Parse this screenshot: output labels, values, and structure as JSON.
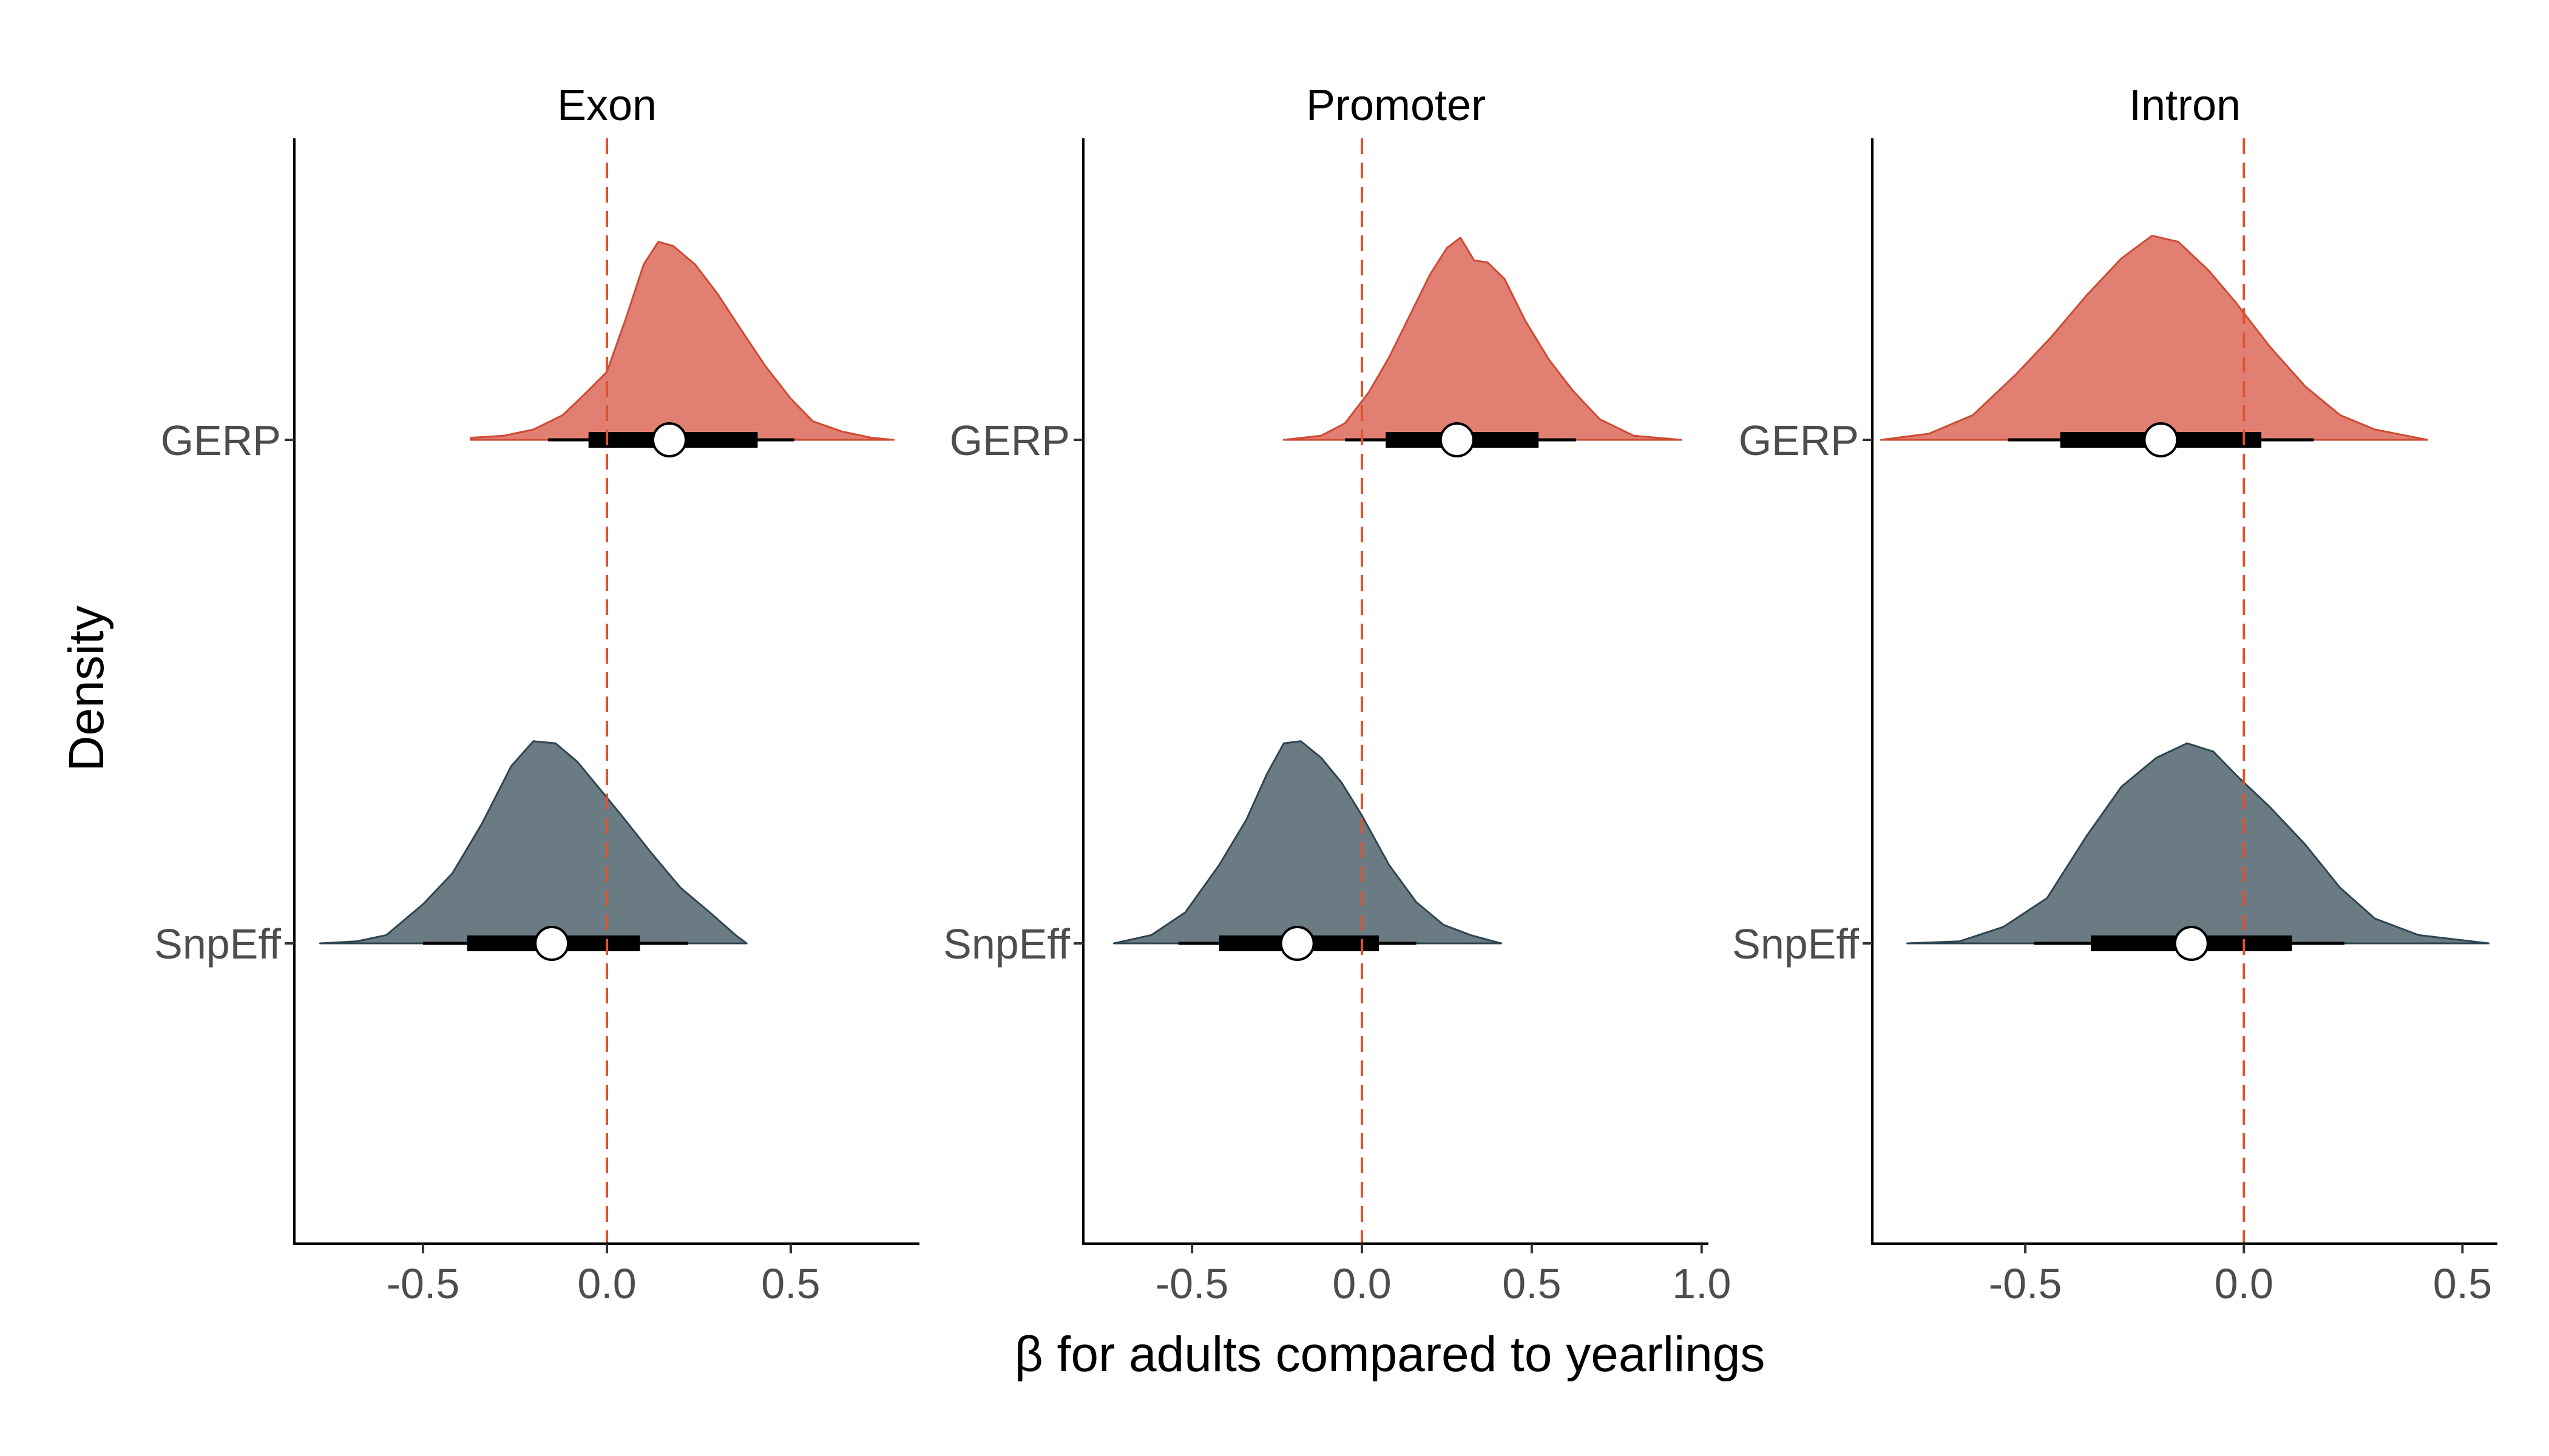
{
  "chart_data": {
    "type": "density",
    "xlabel": "β for adults compared to yearlings",
    "ylabel": "Density",
    "categories": [
      "GERP",
      "SnpEff"
    ],
    "colors": {
      "GERP": "#e07f72",
      "GERP_stroke": "#cf4a33",
      "SnpEff": "#6a7b83",
      "SnpEff_stroke": "#2f4552",
      "refline": "#e0532f"
    },
    "reference_line": 0,
    "grid": false,
    "legend": "none",
    "panels": [
      {
        "title": "Exon",
        "xlim": [
          -0.85,
          0.85
        ],
        "xticks": [
          "-0.5",
          "0.0",
          "0.5"
        ],
        "series": [
          {
            "name": "GERP",
            "mode": 0.15,
            "median": 0.17,
            "interval_66": [
              -0.05,
              0.41
            ],
            "interval_95": [
              -0.16,
              0.51
            ],
            "density": [
              [
                -0.37,
                0.01
              ],
              [
                -0.28,
                0.02
              ],
              [
                -0.2,
                0.05
              ],
              [
                -0.12,
                0.12
              ],
              [
                -0.05,
                0.24
              ],
              [
                0.0,
                0.33
              ],
              [
                0.05,
                0.58
              ],
              [
                0.1,
                0.85
              ],
              [
                0.14,
                0.96
              ],
              [
                0.18,
                0.94
              ],
              [
                0.24,
                0.85
              ],
              [
                0.3,
                0.71
              ],
              [
                0.37,
                0.52
              ],
              [
                0.43,
                0.36
              ],
              [
                0.5,
                0.2
              ],
              [
                0.56,
                0.09
              ],
              [
                0.64,
                0.04
              ],
              [
                0.72,
                0.01
              ],
              [
                0.78,
                0.0
              ]
            ]
          },
          {
            "name": "SnpEff",
            "mode": -0.17,
            "median": -0.15,
            "interval_66": [
              -0.38,
              0.09
            ],
            "interval_95": [
              -0.5,
              0.22
            ],
            "density": [
              [
                -0.78,
                0.0
              ],
              [
                -0.68,
                0.01
              ],
              [
                -0.6,
                0.04
              ],
              [
                -0.5,
                0.19
              ],
              [
                -0.42,
                0.34
              ],
              [
                -0.34,
                0.58
              ],
              [
                -0.26,
                0.86
              ],
              [
                -0.2,
                0.98
              ],
              [
                -0.14,
                0.97
              ],
              [
                -0.08,
                0.88
              ],
              [
                -0.02,
                0.75
              ],
              [
                0.04,
                0.62
              ],
              [
                0.12,
                0.44
              ],
              [
                0.2,
                0.27
              ],
              [
                0.28,
                0.15
              ],
              [
                0.35,
                0.04
              ],
              [
                0.38,
                0.0
              ]
            ]
          }
        ]
      },
      {
        "title": "Promoter",
        "xlim": [
          -0.82,
          1.02
        ],
        "xticks": [
          "-0.5",
          "0.0",
          "0.5",
          "1.0"
        ],
        "series": [
          {
            "name": "GERP",
            "mode": 0.28,
            "median": 0.28,
            "interval_66": [
              0.07,
              0.52
            ],
            "interval_95": [
              -0.05,
              0.63
            ],
            "density": [
              [
                -0.23,
                0.0
              ],
              [
                -0.12,
                0.02
              ],
              [
                -0.05,
                0.08
              ],
              [
                0.02,
                0.23
              ],
              [
                0.08,
                0.4
              ],
              [
                0.14,
                0.6
              ],
              [
                0.2,
                0.8
              ],
              [
                0.25,
                0.93
              ],
              [
                0.29,
                0.98
              ],
              [
                0.33,
                0.87
              ],
              [
                0.37,
                0.86
              ],
              [
                0.42,
                0.78
              ],
              [
                0.48,
                0.58
              ],
              [
                0.55,
                0.39
              ],
              [
                0.62,
                0.24
              ],
              [
                0.7,
                0.1
              ],
              [
                0.8,
                0.02
              ],
              [
                0.94,
                0.0
              ]
            ]
          },
          {
            "name": "SnpEff",
            "mode": -0.2,
            "median": -0.19,
            "interval_66": [
              -0.42,
              0.05
            ],
            "interval_95": [
              -0.54,
              0.16
            ],
            "density": [
              [
                -0.73,
                0.0
              ],
              [
                -0.62,
                0.04
              ],
              [
                -0.52,
                0.15
              ],
              [
                -0.42,
                0.38
              ],
              [
                -0.34,
                0.6
              ],
              [
                -0.28,
                0.82
              ],
              [
                -0.23,
                0.97
              ],
              [
                -0.18,
                0.98
              ],
              [
                -0.12,
                0.9
              ],
              [
                -0.06,
                0.78
              ],
              [
                0.0,
                0.62
              ],
              [
                0.08,
                0.38
              ],
              [
                0.16,
                0.2
              ],
              [
                0.24,
                0.09
              ],
              [
                0.32,
                0.04
              ],
              [
                0.41,
                0.0
              ]
            ]
          }
        ]
      },
      {
        "title": "Intron",
        "xlim": [
          -0.85,
          0.58
        ],
        "xticks": [
          "-0.5",
          "0.0",
          "0.5"
        ],
        "series": [
          {
            "name": "GERP",
            "mode": -0.19,
            "median": -0.19,
            "interval_66": [
              -0.42,
              0.04
            ],
            "interval_95": [
              -0.54,
              0.16
            ],
            "density": [
              [
                -0.83,
                0.0
              ],
              [
                -0.72,
                0.03
              ],
              [
                -0.62,
                0.12
              ],
              [
                -0.52,
                0.32
              ],
              [
                -0.44,
                0.5
              ],
              [
                -0.36,
                0.7
              ],
              [
                -0.28,
                0.88
              ],
              [
                -0.21,
                0.99
              ],
              [
                -0.15,
                0.96
              ],
              [
                -0.08,
                0.82
              ],
              [
                -0.02,
                0.67
              ],
              [
                0.06,
                0.45
              ],
              [
                0.14,
                0.26
              ],
              [
                0.22,
                0.12
              ],
              [
                0.3,
                0.05
              ],
              [
                0.42,
                0.0
              ]
            ]
          },
          {
            "name": "SnpEff",
            "mode": -0.12,
            "median": -0.12,
            "interval_66": [
              -0.35,
              0.11
            ],
            "interval_95": [
              -0.48,
              0.23
            ],
            "density": [
              [
                -0.77,
                0.0
              ],
              [
                -0.65,
                0.01
              ],
              [
                -0.55,
                0.08
              ],
              [
                -0.45,
                0.22
              ],
              [
                -0.36,
                0.52
              ],
              [
                -0.28,
                0.76
              ],
              [
                -0.2,
                0.9
              ],
              [
                -0.13,
                0.97
              ],
              [
                -0.07,
                0.93
              ],
              [
                -0.01,
                0.8
              ],
              [
                0.06,
                0.66
              ],
              [
                0.14,
                0.48
              ],
              [
                0.22,
                0.27
              ],
              [
                0.3,
                0.12
              ],
              [
                0.4,
                0.04
              ],
              [
                0.56,
                0.0
              ]
            ]
          }
        ]
      }
    ]
  }
}
